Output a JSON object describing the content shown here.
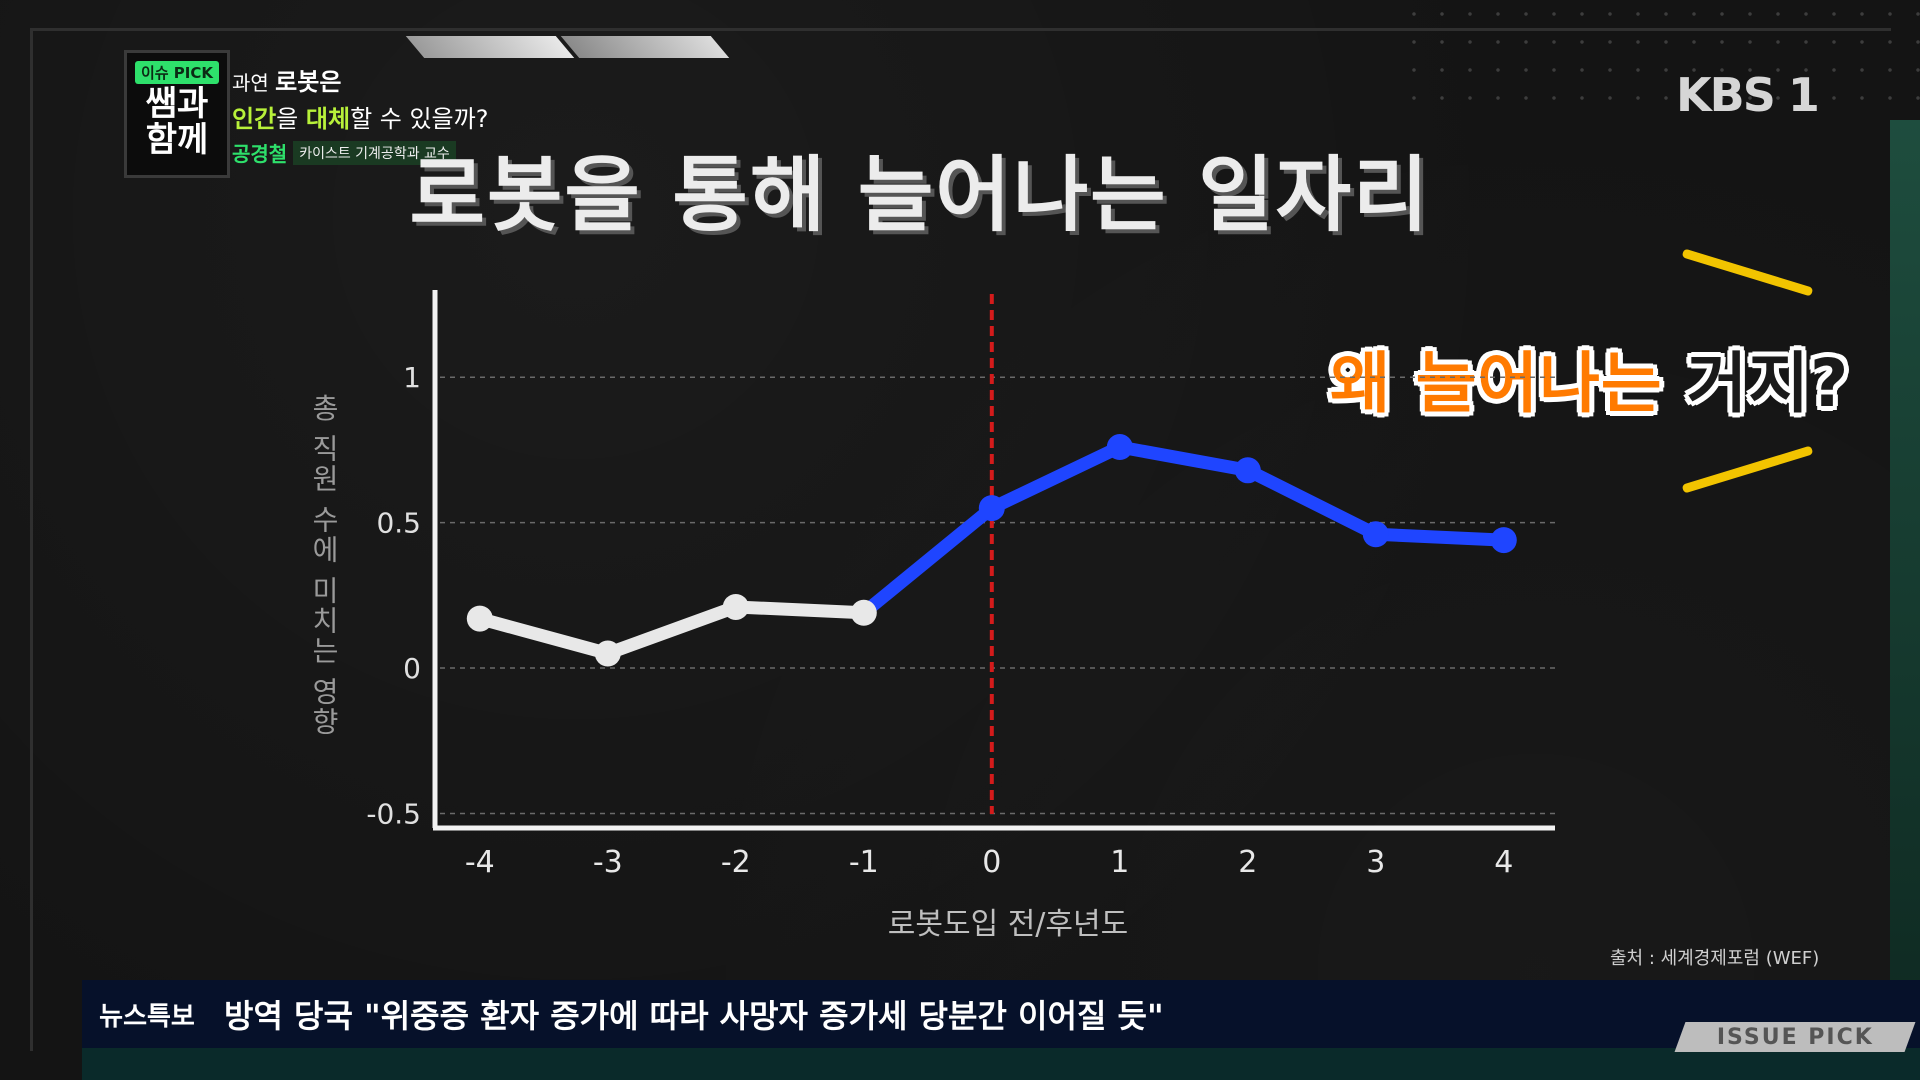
{
  "program": {
    "badge": "이슈 PICK",
    "logo_text": "쌤과 함께",
    "line1_prefix": "과연 ",
    "line1_emphasis": "로봇은",
    "line2_hl1": "인간",
    "line2_mid": "을 ",
    "line2_hl2": "대체",
    "line2_rest": "할 수 있을까?",
    "guest_name": "공경철",
    "guest_title": "카이스트 기계공학과 교수",
    "channel": "KBS 1"
  },
  "main_title": "로봇을 통해 늘어나는 일자리",
  "callout": {
    "part1": "왜 늘어나는",
    "part2": " 거지?"
  },
  "source": "출처 : 세계경제포럼 (WEF)",
  "ticker": {
    "label": "뉴스특보",
    "text": "방역 당국 \"위중증 환자 증가에 따라 사망자 증가세 당분간 이어질 듯\""
  },
  "issue_tag": "ISSUE PICK",
  "colors": {
    "pre_line": "#e8e8e8",
    "post_line": "#1f45ff",
    "marker_line": "#d41b1b",
    "callout": "#ff7a00",
    "accent_stroke": "#f2c400"
  },
  "chart_data": {
    "type": "line",
    "xlabel": "로봇도입 전/후년도",
    "ylabel": "총 직원 수에 미치는 영향",
    "x": [
      -4,
      -3,
      -2,
      -1,
      0,
      1,
      2,
      3,
      4
    ],
    "y": [
      0.17,
      0.05,
      0.21,
      0.19,
      0.55,
      0.76,
      0.68,
      0.46,
      0.44
    ],
    "xticks": [
      "-4",
      "-3",
      "-2",
      "-1",
      "0",
      "1",
      "2",
      "3",
      "4"
    ],
    "yticks": [
      -0.5,
      0,
      0.5,
      1
    ],
    "ytick_labels": [
      "-0.5",
      "0",
      "0.5",
      "1"
    ],
    "ylim": [
      -0.55,
      1.3
    ],
    "xlim": [
      -4.35,
      4.4
    ],
    "vertical_marker_x": 0,
    "grid": "horizontal-dashed",
    "segments": [
      {
        "from_index": 0,
        "to_index": 3,
        "color": "#e8e8e8"
      },
      {
        "from_index": 3,
        "to_index": 8,
        "color": "#1f45ff"
      }
    ]
  }
}
